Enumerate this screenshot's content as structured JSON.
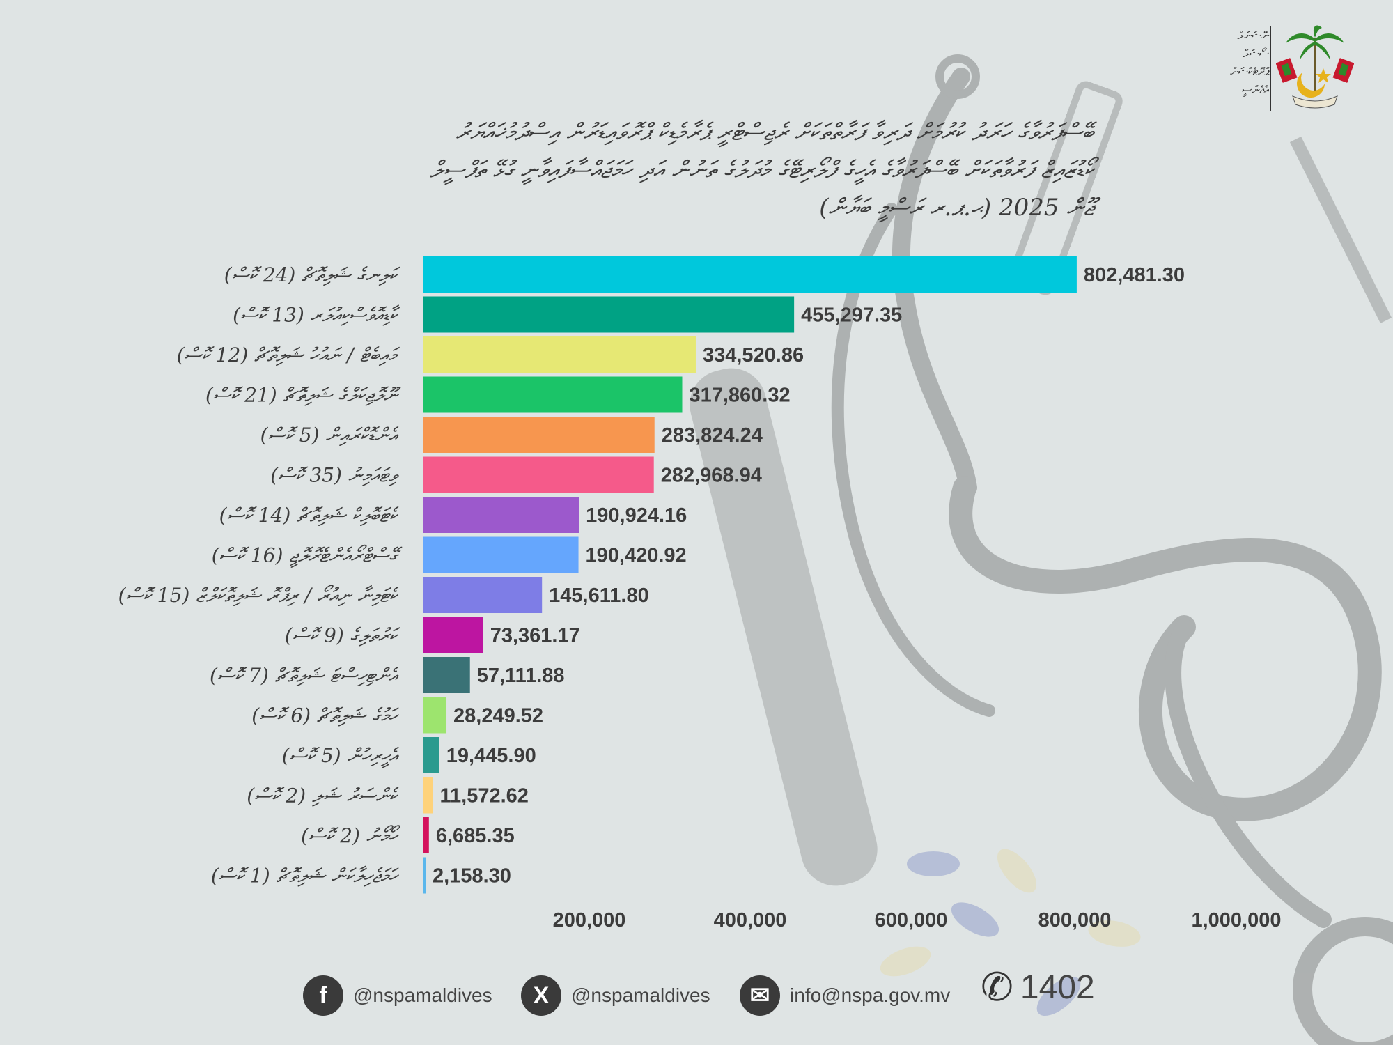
{
  "header": {
    "ministry_lines": [
      "ނޭޝަނަލް",
      "ސޯޝަލް",
      "ޕްރޮޓެކްޝަން",
      "އެޖެންސީ"
    ],
    "title_lines": [
      "ބޭސްފަރުވާގެ ހަރަދު ކުރުމަށް ދަރިވާ ފަރާތްތަކަށް ރެޖިސްޓްރީ ޕެރާމެޑިކް ޕްރޮވައިޑަރުން އިސްދުމުޚައްޔަރު",
      "ކޯޑުޒައިޒް ފަރުވާތަކަށް ބޭސްފަރުވާގެ އެހީގެ ފްލޯރިޓޭގެ މުދަލުގެ ތަނުން އަދި ހަމަޖައްސާފައިވާނީ ގުޅޭ ތަފްސީލް",
      "ޖޫން 2025 (ޙ.ޕ.ރ ރަސްމީ ބަޔާން)"
    ]
  },
  "chart_data": {
    "type": "bar",
    "orientation": "horizontal",
    "categories": [
      "ކަލިނގެ ޝަލިތޮޗް (24 ކޮސް)",
      "ކާޑިއޮވެސްކިއުލަރ (13 ކޮސް)",
      "މައިބެޓް / ނައުހު ޝަލިތޮޗް (12 ކޮސް)",
      "ނޫލޮޖިކަލްގެ ޝަލިތޮޗް (21 ކޮސް)",
      "އެންޑޮކްރައިން (5 ކޮސް)",
      "ވިޓައަމިނު (35 ކޮސް)",
      "ކެޓަބޮލިކް ޝަލިތޮޗް (14 ކޮސް)",
      "ގޭސްޓްރޯއެންޓެރޮލޮޖީ (16 ކޮސް)",
      "ކެޓަމިނާ ނިއުރޯ / ރިޕްރޮ ޝަލިތޮކަލްޒް (15 ކޮސް)",
      "ކަރުތަލިގެ (9 ކޮސް)",
      "އެންޓިހިސްޓަ ޝަލިތޮޗް (7 ކޮސް)",
      "ހަމުގެ ޝަލިތޮޗް (6 ކޮސް)",
      "އެހީރިހުން (5 ކޮސް)",
      "ކެންސަރު ޝަލި (2 ކޮސް)",
      "ހޯމޯނު (2 ކޮސް)",
      "ހަމަޖެހިލާކަން ޝަލިތޮޗް (1 ކޮސް)"
    ],
    "values": [
      802481.3,
      455297.35,
      334520.86,
      317860.32,
      283824.24,
      282968.94,
      190924.16,
      190420.92,
      145611.8,
      73361.17,
      57111.88,
      28249.52,
      19445.9,
      11572.62,
      6685.35,
      2158.3
    ],
    "value_labels": [
      "802,481.30",
      "455,297.35",
      "334,520.86",
      "317,860.32",
      "283,824.24",
      "282,968.94",
      "190,924.16",
      "190,420.92",
      "145,611.80",
      "73,361.17",
      "57,111.88",
      "28,249.52",
      "19,445.90",
      "11,572.62",
      "6,685.35",
      "2,158.30"
    ],
    "colors": [
      "#00c8dc",
      "#00a284",
      "#e6e874",
      "#1bc468",
      "#f7964f",
      "#f55a8a",
      "#9c59cc",
      "#65a6fd",
      "#7e7de6",
      "#bd15a1",
      "#3a7276",
      "#9de46e",
      "#2a9a8e",
      "#fed27a",
      "#d4115c",
      "#5bb7ec"
    ],
    "x_ticks": [
      200000,
      400000,
      600000,
      800000,
      1000000
    ],
    "x_tick_labels": [
      "200,000",
      "400,000",
      "600,000",
      "800,000",
      "1,000,000"
    ],
    "xlim": [
      0,
      1000000
    ],
    "grid": false
  },
  "footer": {
    "facebook": "@nspamaldives",
    "twitter": "@nspamaldives",
    "email": "info@nspa.gov.mv",
    "phone": "1402",
    "facebook_icon": "f",
    "twitter_icon": "X",
    "email_icon": "✉",
    "phone_icon": "✆"
  }
}
